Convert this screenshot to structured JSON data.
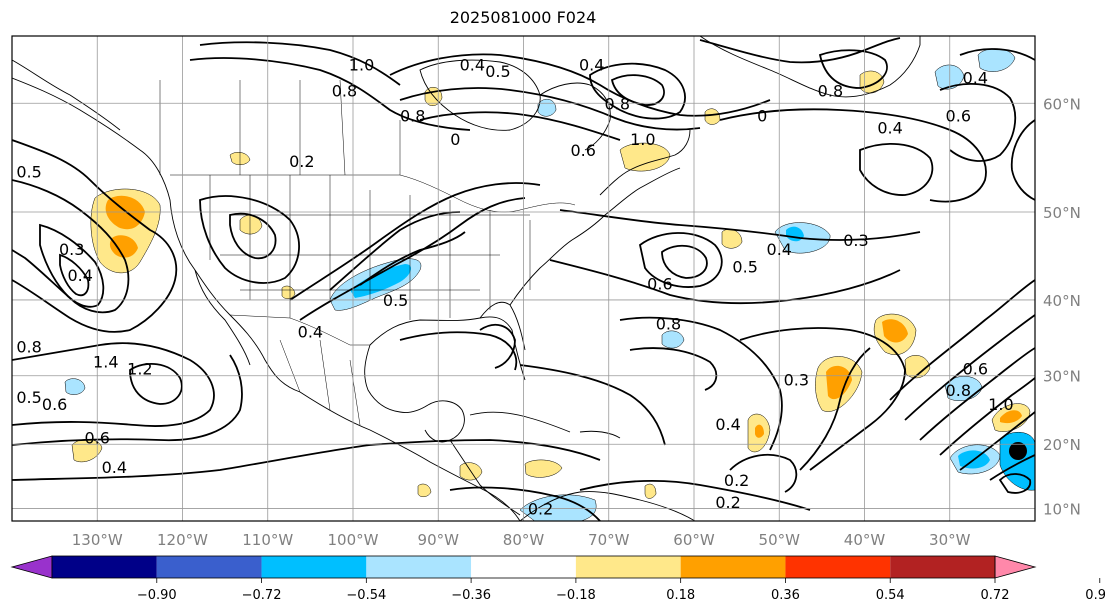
{
  "title": "2025081000 F024",
  "map": {
    "lat_ticks": [
      "60°N",
      "50°N",
      "40°N",
      "30°N",
      "20°N",
      "10°N"
    ],
    "lat_values": [
      60,
      50,
      40,
      30,
      20,
      10
    ],
    "lon_ticks": [
      "130°W",
      "120°W",
      "110°W",
      "100°W",
      "90°W",
      "80°W",
      "70°W",
      "60°W",
      "50°W",
      "40°W",
      "30°W"
    ],
    "lon_values": [
      -130,
      -120,
      -110,
      -100,
      -90,
      -80,
      -70,
      -60,
      -50,
      -40,
      -30
    ],
    "extent": {
      "lon_min": -140,
      "lon_max": -20,
      "lat_min": 8,
      "lat_max": 65
    },
    "grid": true
  },
  "contour_labels": [
    {
      "text": "1.0",
      "lon": -99,
      "lat": 63
    },
    {
      "text": "0.8",
      "lon": -101,
      "lat": 61
    },
    {
      "text": "0.4",
      "lon": -86,
      "lat": 63
    },
    {
      "text": "0.5",
      "lon": -83,
      "lat": 62.5
    },
    {
      "text": "0.4",
      "lon": -72,
      "lat": 63
    },
    {
      "text": "0.8",
      "lon": -69,
      "lat": 60
    },
    {
      "text": "0.8",
      "lon": -93,
      "lat": 59
    },
    {
      "text": "0",
      "lon": -88,
      "lat": 57
    },
    {
      "text": "0.2",
      "lon": -106,
      "lat": 55
    },
    {
      "text": "0.6",
      "lon": -73,
      "lat": 56
    },
    {
      "text": "1.0",
      "lon": -66,
      "lat": 57
    },
    {
      "text": "0.8",
      "lon": -44,
      "lat": 61
    },
    {
      "text": "0",
      "lon": -52,
      "lat": 59
    },
    {
      "text": "0.4",
      "lon": -27,
      "lat": 62
    },
    {
      "text": "0.6",
      "lon": -29,
      "lat": 59
    },
    {
      "text": "0.4",
      "lon": -37,
      "lat": 58
    },
    {
      "text": "0.5",
      "lon": -138,
      "lat": 54
    },
    {
      "text": "0.3",
      "lon": -133,
      "lat": 46
    },
    {
      "text": "0.4",
      "lon": -132,
      "lat": 43
    },
    {
      "text": "0.8",
      "lon": -138,
      "lat": 34
    },
    {
      "text": "1.4",
      "lon": -129,
      "lat": 32
    },
    {
      "text": "1.2",
      "lon": -125,
      "lat": 31
    },
    {
      "text": "0.5",
      "lon": -138,
      "lat": 27
    },
    {
      "text": "0.6",
      "lon": -135,
      "lat": 26
    },
    {
      "text": "0.6",
      "lon": -130,
      "lat": 21
    },
    {
      "text": "0.4",
      "lon": -128,
      "lat": 16.5
    },
    {
      "text": "0.5",
      "lon": -95,
      "lat": 40
    },
    {
      "text": "0.4",
      "lon": -105,
      "lat": 36
    },
    {
      "text": "0.5",
      "lon": -54,
      "lat": 44
    },
    {
      "text": "0.4",
      "lon": -50,
      "lat": 46
    },
    {
      "text": "0.3",
      "lon": -41,
      "lat": 47
    },
    {
      "text": "0.6",
      "lon": -64,
      "lat": 42
    },
    {
      "text": "0.8",
      "lon": -63,
      "lat": 37
    },
    {
      "text": "0.3",
      "lon": -48,
      "lat": 29.5
    },
    {
      "text": "0.4",
      "lon": -56,
      "lat": 23
    },
    {
      "text": "0.2",
      "lon": -55,
      "lat": 14.5
    },
    {
      "text": "0.2",
      "lon": -56,
      "lat": 11
    },
    {
      "text": "0.8",
      "lon": -29,
      "lat": 28
    },
    {
      "text": "0.6",
      "lon": -27,
      "lat": 31
    },
    {
      "text": "1.0",
      "lon": -24,
      "lat": 26
    },
    {
      "text": "0.2",
      "lon": -78,
      "lat": 10
    }
  ],
  "colorbar": {
    "tick_labels": [
      "−0.90",
      "−0.72",
      "−0.54",
      "−0.36",
      "−0.18",
      "0.18",
      "0.36",
      "0.54",
      "0.72",
      "0.90"
    ],
    "colors": [
      "#9932cc",
      "#000088",
      "#3a5fcd",
      "#00bfff",
      "#aae4ff",
      "#ffffff",
      "#ffe88a",
      "#ffa000",
      "#ff3300",
      "#b22222",
      "#ff88aa"
    ]
  }
}
